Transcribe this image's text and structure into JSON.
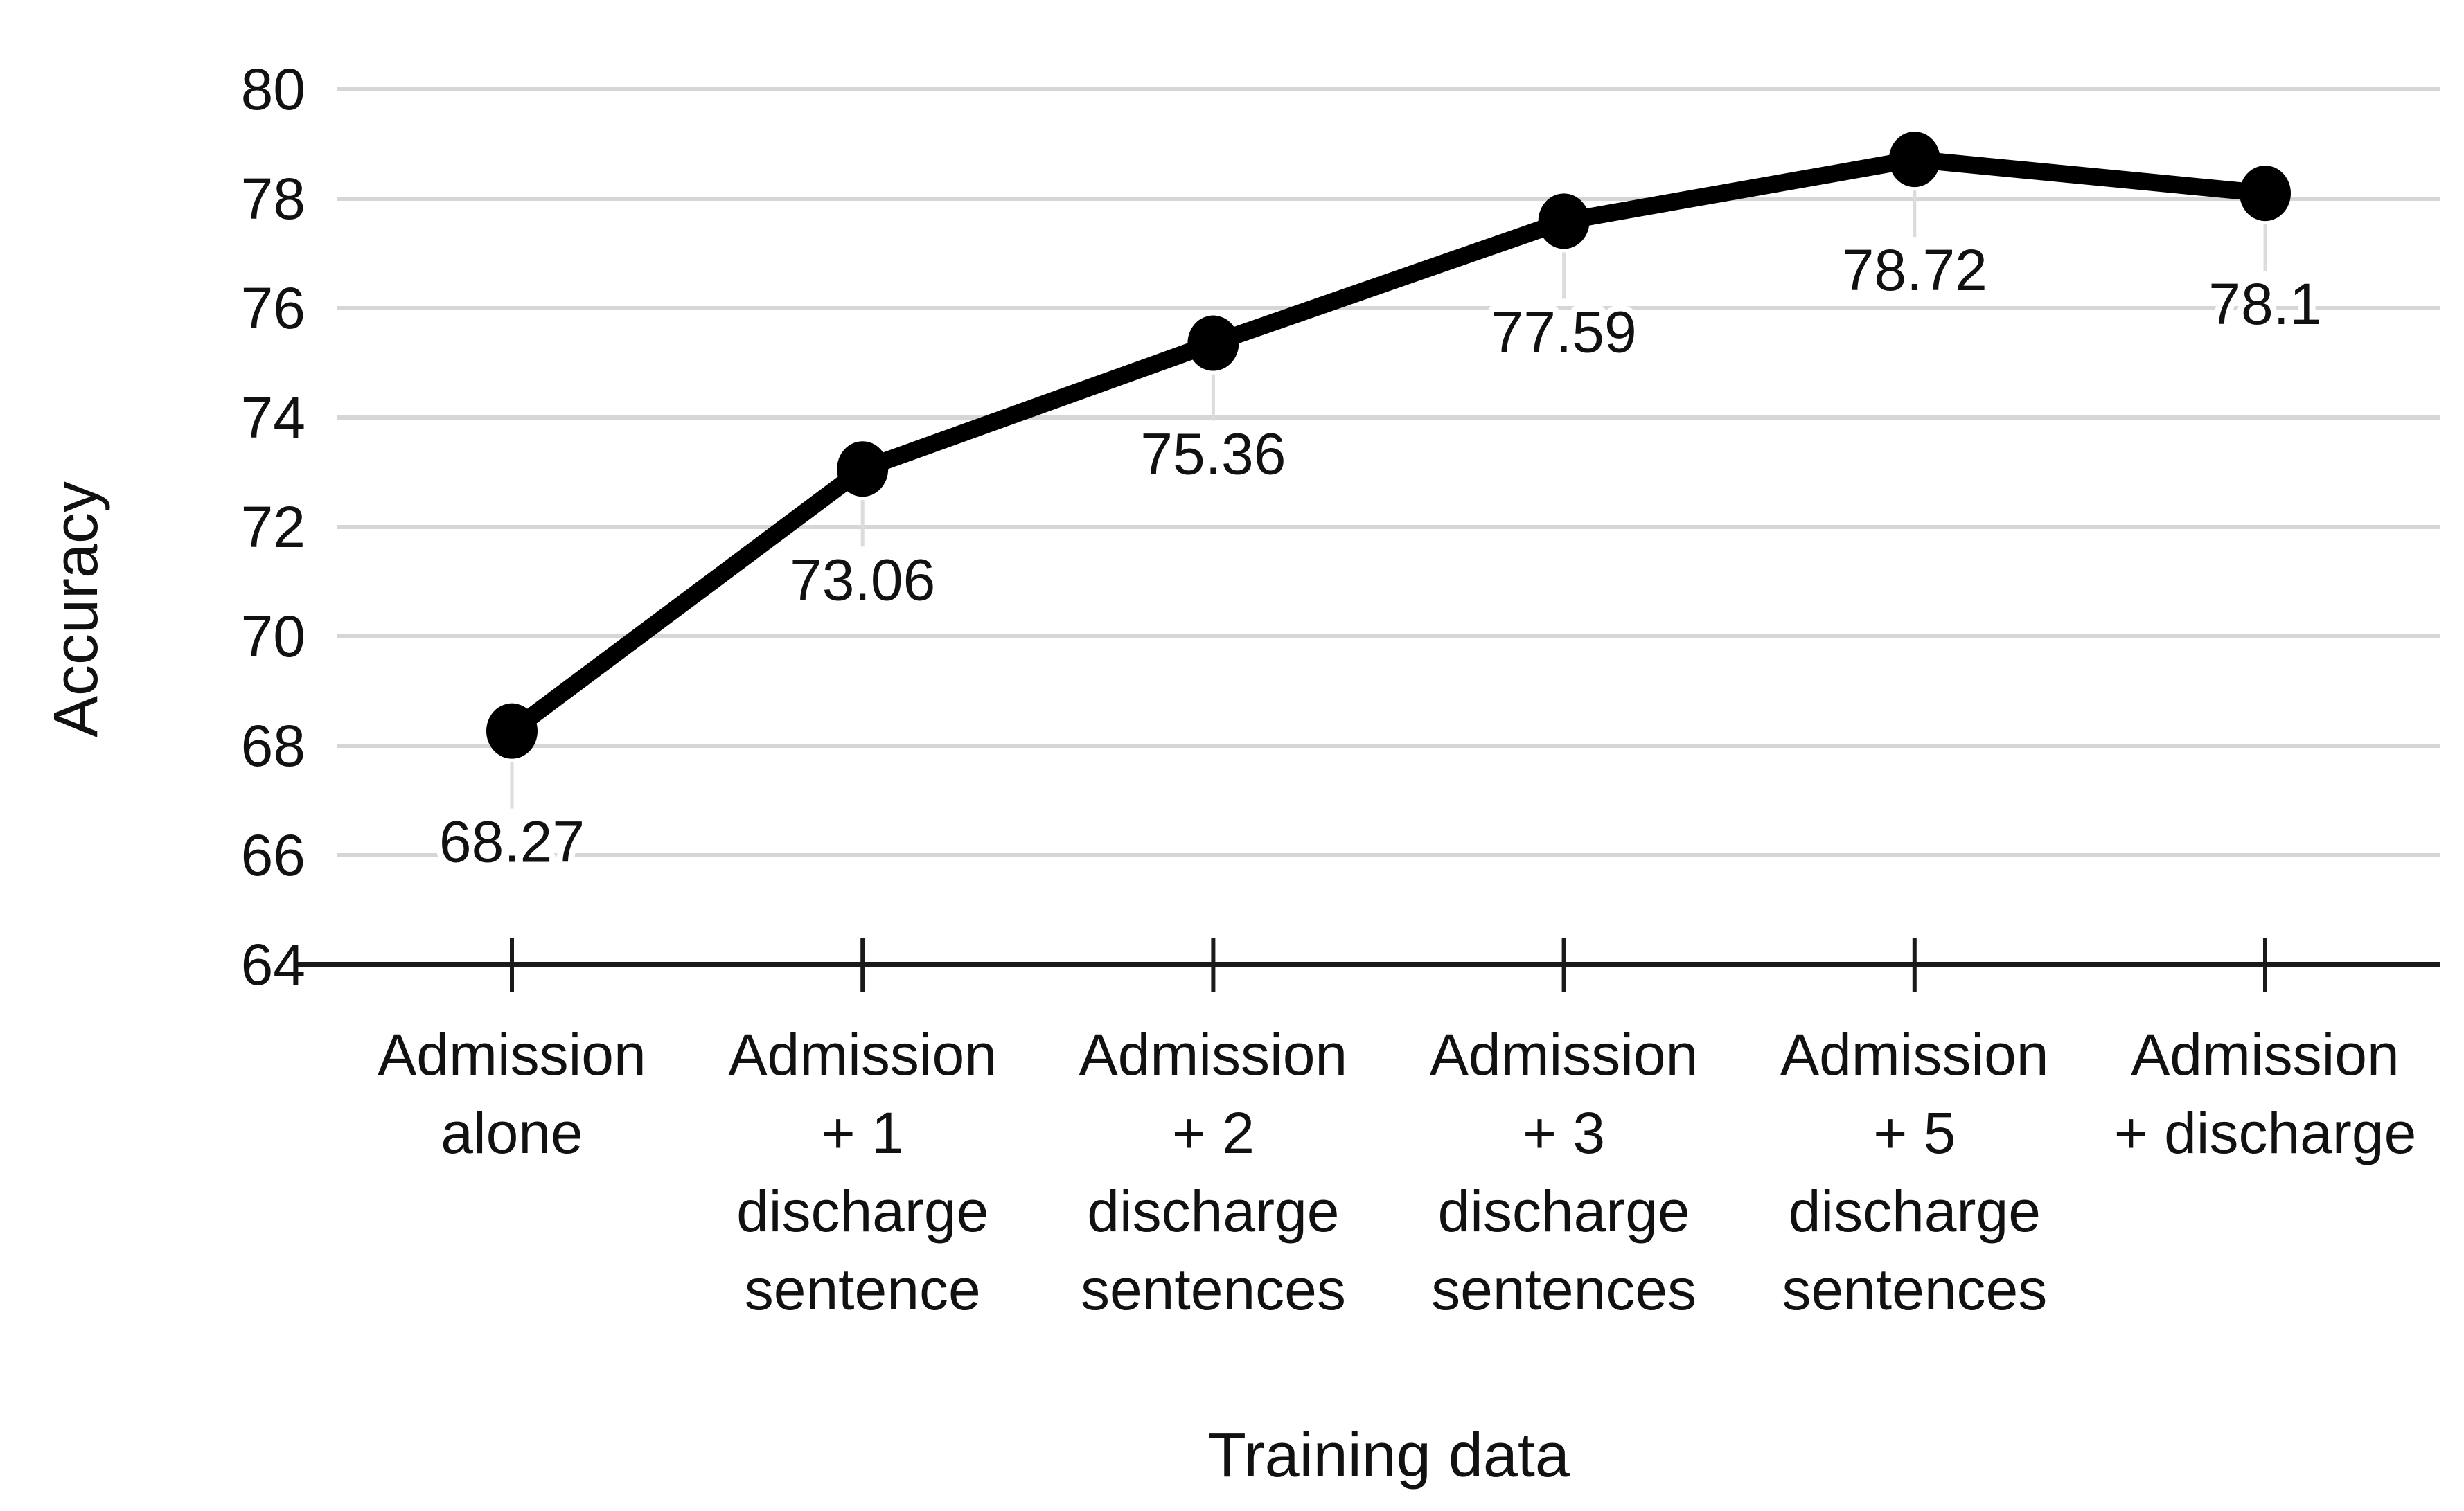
{
  "figure": {
    "background": "#ffffff"
  },
  "chart_data": {
    "type": "line",
    "title": "",
    "xlabel": "Training data",
    "ylabel": "Accuracy",
    "categories": [
      "Admission alone",
      "Admission + 1 discharge sentence",
      "Admission + 2 discharge sentences",
      "Admission + 3 discharge sentences",
      "Admission + 5 discharge sentences",
      "Admission + discharge"
    ],
    "categories_wrapped": [
      [
        "Admission",
        "alone"
      ],
      [
        "Admission",
        "+ 1",
        "discharge",
        "sentence"
      ],
      [
        "Admission",
        "+ 2",
        "discharge",
        "sentences"
      ],
      [
        "Admission",
        "+ 3",
        "discharge",
        "sentences"
      ],
      [
        "Admission",
        "+ 5",
        "discharge",
        "sentences"
      ],
      [
        "Admission",
        "+ discharge"
      ]
    ],
    "values": [
      68.27,
      73.06,
      75.36,
      77.59,
      78.72,
      78.1
    ],
    "point_labels": [
      "68.27",
      "73.06",
      "75.36",
      "77.59",
      "78.72",
      "78.1"
    ],
    "yticks": [
      64,
      66,
      68,
      70,
      72,
      74,
      76,
      78,
      80
    ],
    "ylim": [
      64,
      80
    ],
    "grid": true,
    "legend": false,
    "colors": {
      "line": "#000000",
      "marker": "#000000",
      "grid": "#d6d6d6",
      "axis": "#1a1a1a",
      "tick": "#1a1a1a",
      "leader": "#dcdcdc",
      "text": "#111111"
    }
  }
}
